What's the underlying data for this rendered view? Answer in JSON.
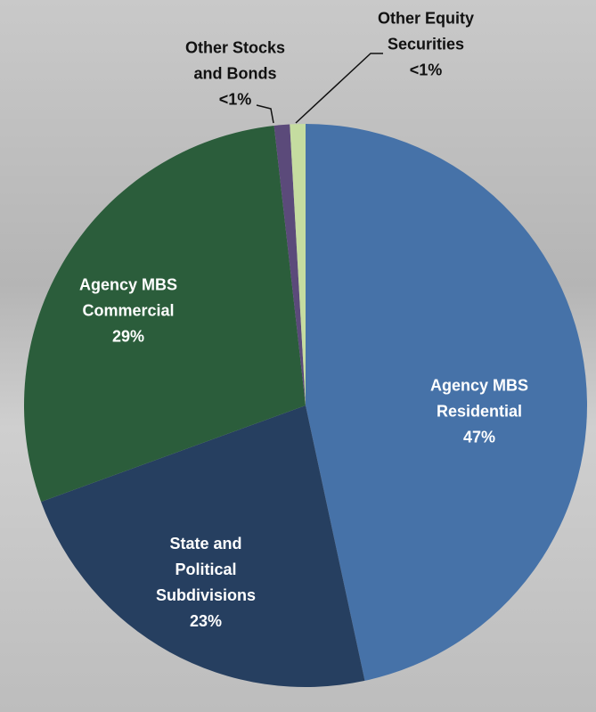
{
  "chart_data": {
    "type": "pie",
    "categories": [
      "Agency MBS Residential",
      "State and Political Subdivisions",
      "Agency MBS Commercial",
      "Other Stocks and Bonds",
      "Other Equity Securities"
    ],
    "values": [
      47,
      23,
      29,
      0.9,
      0.9
    ],
    "value_labels": [
      "47%",
      "23%",
      "29%",
      "<1%",
      "<1%"
    ],
    "colors": [
      "#4672a8",
      "#263f60",
      "#2b5d3b",
      "#5b4a7a",
      "#c5dca0"
    ]
  }
}
